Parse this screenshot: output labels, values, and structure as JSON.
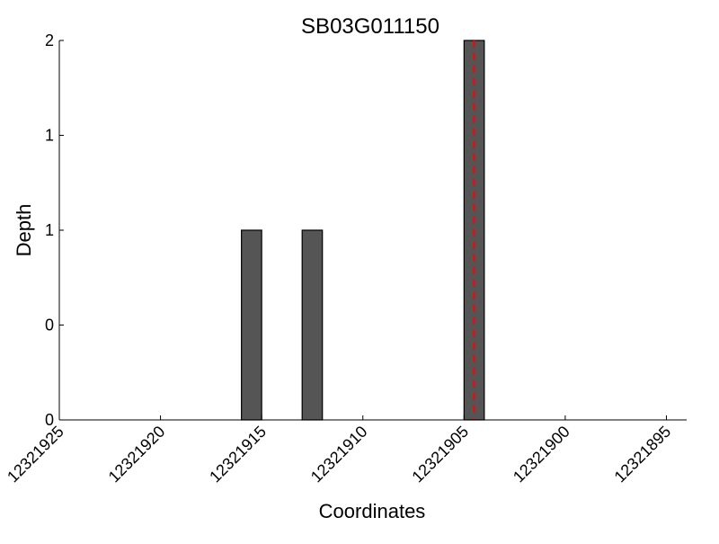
{
  "chart_data": {
    "type": "bar",
    "title": "SB03G011150",
    "xlabel": "Coordinates",
    "ylabel": "Depth",
    "xlim": [
      12321925,
      12321894
    ],
    "x_reversed": true,
    "ylim": [
      0,
      2
    ],
    "x_ticks": [
      12321925,
      12321920,
      12321915,
      12321910,
      12321905,
      12321900,
      12321895
    ],
    "x_tick_labels": [
      "12321925",
      "12321920",
      "12321915",
      "12321910",
      "12321905",
      "12321900",
      "12321895"
    ],
    "y_ticks": [
      0,
      0.5,
      1,
      1.5,
      2
    ],
    "y_tick_labels": [
      "0",
      "0",
      "1",
      "1",
      "2"
    ],
    "bars": [
      {
        "start": 12321915,
        "end": 12321916,
        "value": 1
      },
      {
        "start": 12321912,
        "end": 12321913,
        "value": 1
      },
      {
        "start": 12321904,
        "end": 12321905,
        "value": 2
      }
    ],
    "marker_line": {
      "x": 12321904.5,
      "style": "dashed",
      "color": "#ff0000"
    },
    "bar_color": "#555555",
    "grid": false,
    "legend": "none"
  }
}
